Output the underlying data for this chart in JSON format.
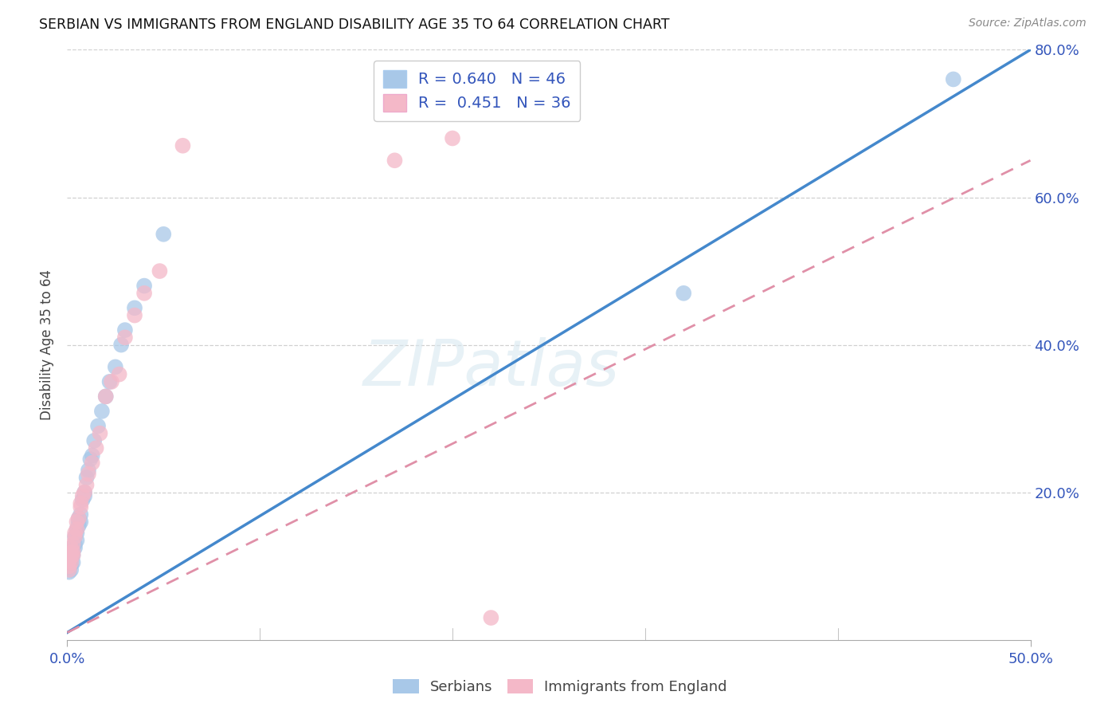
{
  "title": "SERBIAN VS IMMIGRANTS FROM ENGLAND DISABILITY AGE 35 TO 64 CORRELATION CHART",
  "source": "Source: ZipAtlas.com",
  "ylabel": "Disability Age 35 to 64",
  "xlim": [
    0.0,
    0.5
  ],
  "ylim": [
    0.0,
    0.8
  ],
  "xticks": [
    0.0,
    0.5
  ],
  "xtick_labels": [
    "0.0%",
    "50.0%"
  ],
  "yticks": [
    0.0,
    0.2,
    0.4,
    0.6,
    0.8
  ],
  "ytick_labels_right": [
    "",
    "20.0%",
    "40.0%",
    "60.0%",
    "80.0%"
  ],
  "grid_yticks": [
    0.2,
    0.4,
    0.6,
    0.8
  ],
  "R_serbian": 0.64,
  "N_serbian": 46,
  "R_english": 0.451,
  "N_english": 36,
  "blue_color": "#a8c8e8",
  "pink_color": "#f4b8c8",
  "blue_line_color": "#4488cc",
  "pink_line_color": "#e090a8",
  "blue_line_slope": 1.58,
  "blue_line_intercept": 0.01,
  "pink_line_slope": 1.28,
  "pink_line_intercept": 0.01,
  "serbian_x": [
    0.001,
    0.001,
    0.001,
    0.001,
    0.001,
    0.002,
    0.002,
    0.002,
    0.002,
    0.002,
    0.002,
    0.003,
    0.003,
    0.003,
    0.003,
    0.004,
    0.004,
    0.004,
    0.005,
    0.005,
    0.005,
    0.006,
    0.006,
    0.006,
    0.007,
    0.007,
    0.008,
    0.009,
    0.009,
    0.01,
    0.011,
    0.012,
    0.013,
    0.014,
    0.016,
    0.018,
    0.02,
    0.022,
    0.025,
    0.028,
    0.03,
    0.035,
    0.04,
    0.05,
    0.32,
    0.46
  ],
  "serbian_y": [
    0.1,
    0.105,
    0.11,
    0.098,
    0.092,
    0.108,
    0.115,
    0.102,
    0.112,
    0.095,
    0.118,
    0.12,
    0.125,
    0.105,
    0.115,
    0.13,
    0.14,
    0.125,
    0.15,
    0.145,
    0.135,
    0.16,
    0.155,
    0.165,
    0.17,
    0.16,
    0.19,
    0.2,
    0.195,
    0.22,
    0.23,
    0.245,
    0.25,
    0.27,
    0.29,
    0.31,
    0.33,
    0.35,
    0.37,
    0.4,
    0.42,
    0.45,
    0.48,
    0.55,
    0.47,
    0.76
  ],
  "english_x": [
    0.001,
    0.001,
    0.001,
    0.001,
    0.002,
    0.002,
    0.002,
    0.002,
    0.003,
    0.003,
    0.003,
    0.004,
    0.004,
    0.005,
    0.005,
    0.006,
    0.007,
    0.007,
    0.008,
    0.009,
    0.01,
    0.011,
    0.013,
    0.015,
    0.017,
    0.02,
    0.023,
    0.027,
    0.03,
    0.035,
    0.04,
    0.048,
    0.06,
    0.17,
    0.2,
    0.22
  ],
  "english_y": [
    0.095,
    0.1,
    0.108,
    0.115,
    0.105,
    0.112,
    0.118,
    0.125,
    0.115,
    0.12,
    0.13,
    0.14,
    0.145,
    0.15,
    0.16,
    0.165,
    0.18,
    0.185,
    0.195,
    0.2,
    0.21,
    0.225,
    0.24,
    0.26,
    0.28,
    0.33,
    0.35,
    0.36,
    0.41,
    0.44,
    0.47,
    0.5,
    0.67,
    0.65,
    0.68,
    0.03
  ],
  "watermark": "ZIPatlas",
  "background_color": "#ffffff",
  "grid_color": "#d0d0d0"
}
